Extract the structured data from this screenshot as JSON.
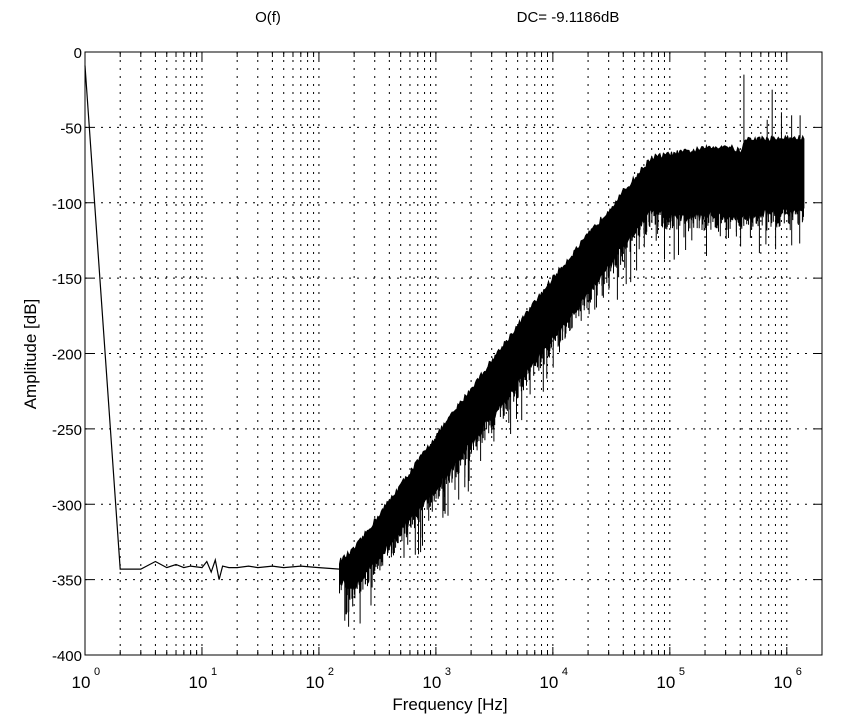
{
  "chart_data": {
    "type": "line",
    "title": "O(f)",
    "annotation": "DC= -9.1186dB",
    "xlabel": "Frequency [Hz]",
    "ylabel": "Amplitude [dB]",
    "xscale": "log",
    "xlim": [
      1,
      2000000
    ],
    "ylim": [
      -400,
      0
    ],
    "grid": true,
    "x_ticks": [
      {
        "base": "10",
        "exp": "0",
        "value": 1
      },
      {
        "base": "10",
        "exp": "1",
        "value": 10
      },
      {
        "base": "10",
        "exp": "2",
        "value": 100
      },
      {
        "base": "10",
        "exp": "3",
        "value": 1000
      },
      {
        "base": "10",
        "exp": "4",
        "value": 10000
      },
      {
        "base": "10",
        "exp": "5",
        "value": 100000
      },
      {
        "base": "10",
        "exp": "6",
        "value": 1000000
      }
    ],
    "y_ticks": [
      0,
      -50,
      -100,
      -150,
      -200,
      -250,
      -300,
      -350,
      -400
    ],
    "y_tick_labels": [
      "0",
      "-50",
      "-100",
      "-150",
      "-200",
      "-250",
      "-300",
      "-350",
      "-400"
    ],
    "series_low": [
      [
        1,
        -9
      ],
      [
        2,
        -343
      ],
      [
        3,
        -343
      ],
      [
        4,
        -338
      ],
      [
        5,
        -342
      ],
      [
        6,
        -340
      ],
      [
        7,
        -342
      ],
      [
        8,
        -341
      ],
      [
        10,
        -342
      ],
      [
        11,
        -338
      ],
      [
        12,
        -345
      ],
      [
        13,
        -337
      ],
      [
        14,
        -350
      ],
      [
        15,
        -341
      ],
      [
        17,
        -342
      ],
      [
        20,
        -342
      ],
      [
        25,
        -341
      ],
      [
        30,
        -342
      ],
      [
        40,
        -341
      ],
      [
        50,
        -342
      ],
      [
        70,
        -341
      ],
      [
        100,
        -342
      ],
      [
        150,
        -343
      ]
    ],
    "band_envelope": [
      {
        "f": 150,
        "upper": -338,
        "lower": -350
      },
      {
        "f": 200,
        "upper": -330,
        "lower": -355
      },
      {
        "f": 1000,
        "upper": -255,
        "lower": -290
      },
      {
        "f": 10000,
        "upper": -150,
        "lower": -190
      },
      {
        "f": 70000,
        "upper": -70,
        "lower": -105
      },
      {
        "f": 100000,
        "upper": -68,
        "lower": -110
      },
      {
        "f": 300000,
        "upper": -62,
        "lower": -108
      },
      {
        "f": 400000,
        "upper": -66,
        "lower": -110
      },
      {
        "f": 450000,
        "upper": -58,
        "lower": -108
      },
      {
        "f": 1400000,
        "upper": -57,
        "lower": -105
      }
    ],
    "spikes": [
      [
        170,
        -373
      ],
      [
        430000,
        -15
      ],
      [
        680000,
        -45
      ],
      [
        750000,
        -25
      ],
      [
        900000,
        -40
      ],
      [
        1100000,
        -42
      ],
      [
        1300000,
        -42
      ]
    ]
  }
}
